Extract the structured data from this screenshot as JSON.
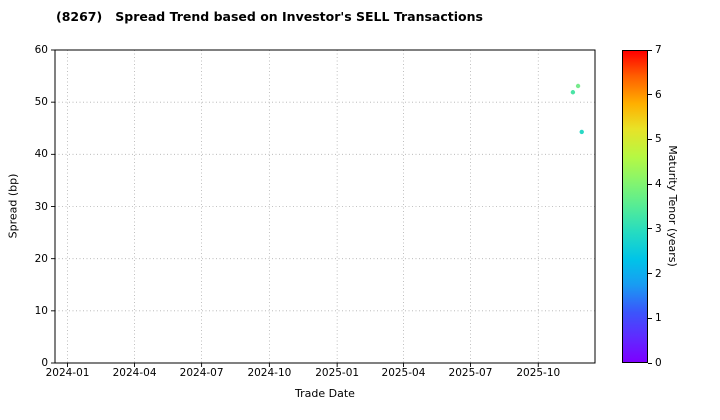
{
  "title": "(8267)   Spread Trend based on Investor's SELL Transactions",
  "chart_data": {
    "type": "scatter",
    "title": "(8267)   Spread Trend based on Investor's SELL Transactions",
    "xlabel": "Trade Date",
    "ylabel": "Spread (bp)",
    "ylim": [
      0,
      60
    ],
    "yticks": [
      0,
      10,
      20,
      30,
      40,
      50,
      60
    ],
    "xlim": [
      "2023-12-15",
      "2025-12-17"
    ],
    "xticks": [
      "2024-01",
      "2024-04",
      "2024-07",
      "2024-10",
      "2025-01",
      "2025-04",
      "2025-07",
      "2025-10"
    ],
    "grid": true,
    "grid_style": "dotted",
    "points": [
      {
        "date": "2025-11-17",
        "spread": 51.9,
        "tenor": 2.9,
        "color": "#4ae3a5"
      },
      {
        "date": "2025-11-24",
        "spread": 53.1,
        "tenor": 3.3,
        "color": "#77ea8c"
      },
      {
        "date": "2025-11-29",
        "spread": 44.3,
        "tenor": 2.6,
        "color": "#29d8c5"
      }
    ],
    "colorbar": {
      "label": "Maturity Tenor (years)",
      "min": 0,
      "max": 7,
      "ticks": [
        0,
        1,
        2,
        3,
        4,
        5,
        6,
        7
      ],
      "gradient": [
        {
          "pos": 0,
          "color": "#7d00ff"
        },
        {
          "pos": 8,
          "color": "#5f2bff"
        },
        {
          "pos": 16,
          "color": "#3b55fb"
        },
        {
          "pos": 25,
          "color": "#189df2"
        },
        {
          "pos": 33,
          "color": "#00c4e8"
        },
        {
          "pos": 42,
          "color": "#27dcc0"
        },
        {
          "pos": 50,
          "color": "#55ec96"
        },
        {
          "pos": 58,
          "color": "#86f56d"
        },
        {
          "pos": 66,
          "color": "#b6f843"
        },
        {
          "pos": 75,
          "color": "#e8e227"
        },
        {
          "pos": 83,
          "color": "#ffb000"
        },
        {
          "pos": 92,
          "color": "#ff5d00"
        },
        {
          "pos": 100,
          "color": "#ff0000"
        }
      ]
    }
  }
}
